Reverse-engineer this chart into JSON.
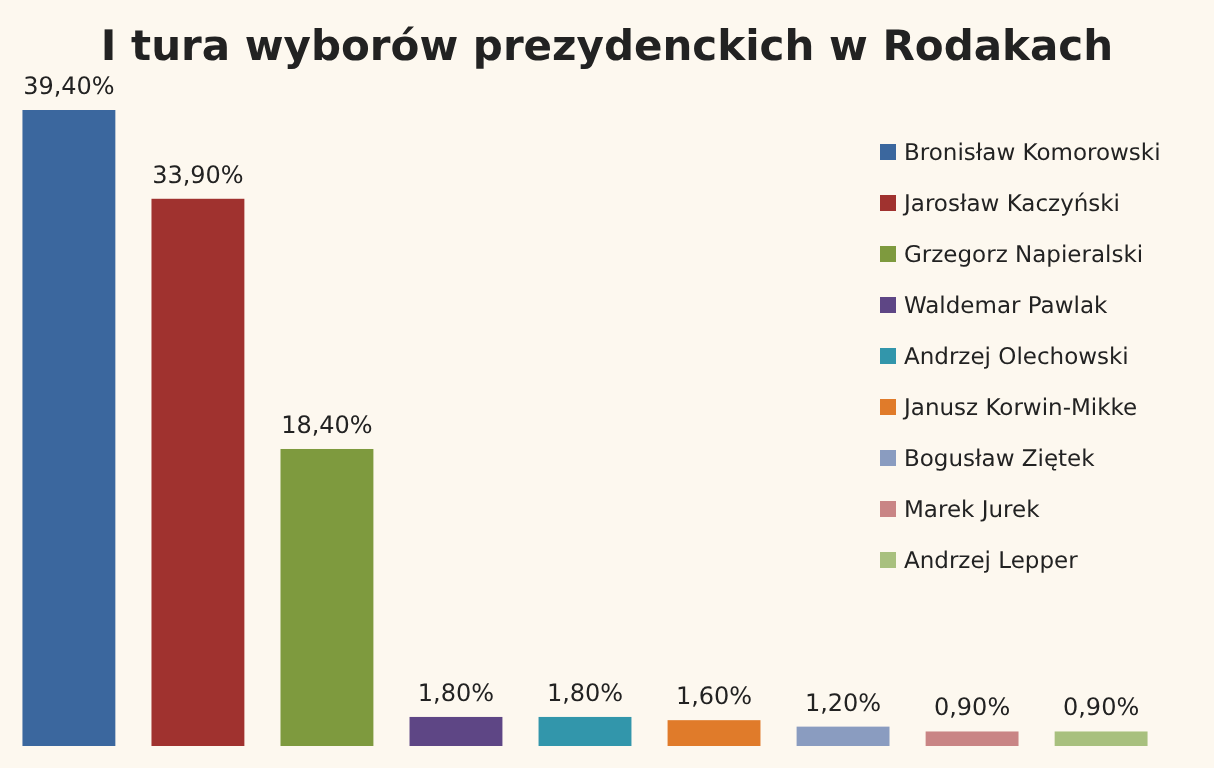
{
  "chart_data": {
    "type": "bar",
    "title": "I tura wyborów prezydenckich w Rodakach",
    "categories": [
      null,
      null,
      null,
      null,
      null,
      null,
      null,
      null,
      null
    ],
    "stacked": true,
    "series": [
      {
        "name": "Bronisław Komorowski",
        "color": "#3b679e",
        "values": [
          39.4,
          null,
          null,
          null,
          null,
          null,
          null,
          null,
          null
        ],
        "value_labels": [
          "39,40%",
          null,
          null,
          null,
          null,
          null,
          null,
          null,
          null
        ]
      },
      {
        "name": "Jarosław Kaczyński",
        "color": "#a0322f",
        "values": [
          null,
          33.9,
          null,
          null,
          null,
          null,
          null,
          null,
          null
        ],
        "value_labels": [
          null,
          "33,90%",
          null,
          null,
          null,
          null,
          null,
          null,
          null
        ]
      },
      {
        "name": "Grzegorz Napieralski",
        "color": "#7e9a3e",
        "values": [
          null,
          null,
          18.4,
          null,
          null,
          null,
          null,
          null,
          null
        ],
        "value_labels": [
          null,
          null,
          "18,40%",
          null,
          null,
          null,
          null,
          null,
          null
        ]
      },
      {
        "name": "Waldemar Pawlak",
        "color": "#5e4685",
        "values": [
          null,
          null,
          null,
          1.8,
          null,
          null,
          null,
          null,
          null
        ],
        "value_labels": [
          null,
          null,
          null,
          "1,80%",
          null,
          null,
          null,
          null,
          null
        ]
      },
      {
        "name": "Andrzej Olechowski",
        "color": "#3296ab",
        "values": [
          null,
          null,
          null,
          null,
          1.8,
          null,
          null,
          null,
          null
        ],
        "value_labels": [
          null,
          null,
          null,
          null,
          "1,80%",
          null,
          null,
          null,
          null
        ]
      },
      {
        "name": "Janusz Korwin-Mikke",
        "color": "#e07b2a",
        "values": [
          null,
          null,
          null,
          null,
          null,
          1.6,
          null,
          null,
          null
        ],
        "value_labels": [
          null,
          null,
          null,
          null,
          null,
          "1,60%",
          null,
          null,
          null
        ]
      },
      {
        "name": "Bogusław Ziętek",
        "color": "#8a9cc0",
        "values": [
          null,
          null,
          null,
          null,
          null,
          null,
          1.2,
          null,
          null
        ],
        "value_labels": [
          null,
          null,
          null,
          null,
          null,
          null,
          "1,20%",
          null,
          null
        ]
      },
      {
        "name": "Marek Jurek",
        "color": "#c98585",
        "values": [
          null,
          null,
          null,
          null,
          null,
          null,
          null,
          0.9,
          null
        ],
        "value_labels": [
          null,
          null,
          null,
          null,
          null,
          null,
          null,
          "0,90%",
          null
        ]
      },
      {
        "name": "Andrzej Lepper",
        "color": "#a8c07e",
        "values": [
          null,
          null,
          null,
          null,
          null,
          null,
          null,
          null,
          0.9
        ],
        "value_labels": [
          null,
          null,
          null,
          null,
          null,
          null,
          null,
          null,
          "0,90%"
        ]
      }
    ],
    "legend": "top right"
  }
}
